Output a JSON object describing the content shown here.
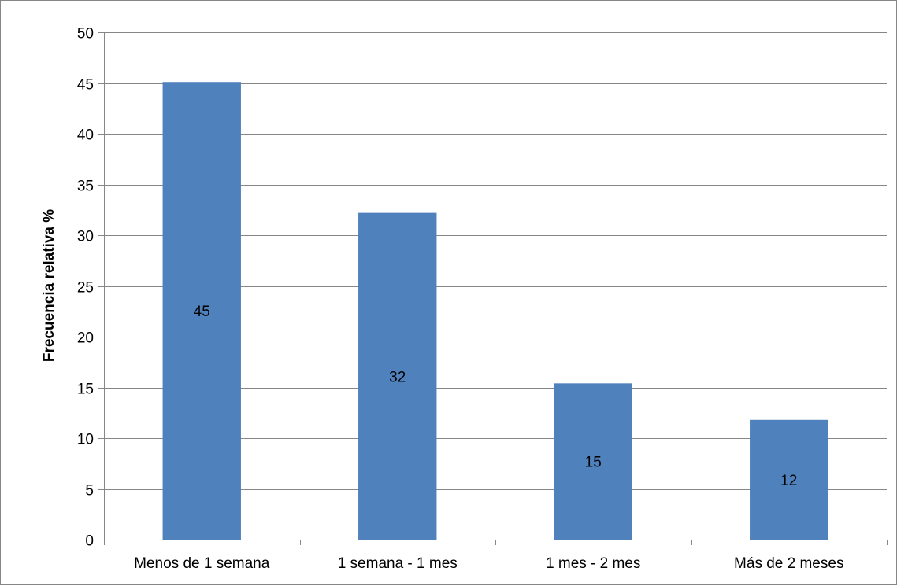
{
  "chart_data": {
    "type": "bar",
    "title": "",
    "xlabel": "",
    "ylabel": "Frecuencia relativa %",
    "categories": [
      "Menos de 1 semana",
      "1 semana - 1 mes",
      "1 mes - 2 mes",
      "Más de 2 meses"
    ],
    "values": [
      45.1,
      32.2,
      15.4,
      11.8
    ],
    "data_labels": [
      "45",
      "32",
      "15",
      "12"
    ],
    "ylim": [
      0,
      50
    ],
    "ytick_step": 5,
    "grid": true,
    "legend": "none",
    "colors": {
      "bar": "#4F81BD",
      "grid": "#868686",
      "axis": "#868686"
    }
  }
}
